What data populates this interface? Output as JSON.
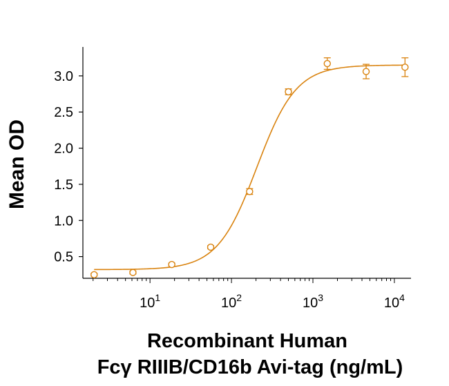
{
  "chart_data": {
    "type": "scatter",
    "title": "",
    "xlabel_line1": "Recombinant Human",
    "xlabel_line2": "Fcγ RIIIB/CD16b Avi-tag (ng/mL)",
    "ylabel": "Mean OD",
    "x_scale": "log",
    "xlim": [
      1.5,
      16000
    ],
    "ylim": [
      0.2,
      3.4
    ],
    "grid": false,
    "color": "#D9820D",
    "x_ticks": [
      {
        "base": "10",
        "exp": "1",
        "value": 10
      },
      {
        "base": "10",
        "exp": "2",
        "value": 100
      },
      {
        "base": "10",
        "exp": "3",
        "value": 1000
      },
      {
        "base": "10",
        "exp": "4",
        "value": 10000
      }
    ],
    "y_ticks": [
      {
        "label": "0.5",
        "value": 0.5
      },
      {
        "label": "1.0",
        "value": 1.0
      },
      {
        "label": "1.5",
        "value": 1.5
      },
      {
        "label": "2.0",
        "value": 2.0
      },
      {
        "label": "2.5",
        "value": 2.5
      },
      {
        "label": "3.0",
        "value": 3.0
      }
    ],
    "points": [
      {
        "x": 2.06,
        "y": 0.25,
        "err": 0.02
      },
      {
        "x": 6.17,
        "y": 0.28,
        "err": 0.02
      },
      {
        "x": 18.5,
        "y": 0.39,
        "err": 0.02
      },
      {
        "x": 55.6,
        "y": 0.63,
        "err": 0.02
      },
      {
        "x": 167,
        "y": 1.4,
        "err": 0.04
      },
      {
        "x": 500,
        "y": 2.78,
        "err": 0.04
      },
      {
        "x": 1500,
        "y": 3.17,
        "err": 0.08
      },
      {
        "x": 4500,
        "y": 3.06,
        "err": 0.1
      },
      {
        "x": 13500,
        "y": 3.12,
        "err": 0.13
      }
    ],
    "fit": {
      "bottom": 0.32,
      "top": 3.15,
      "ec50": 205,
      "hill": 1.8
    }
  }
}
